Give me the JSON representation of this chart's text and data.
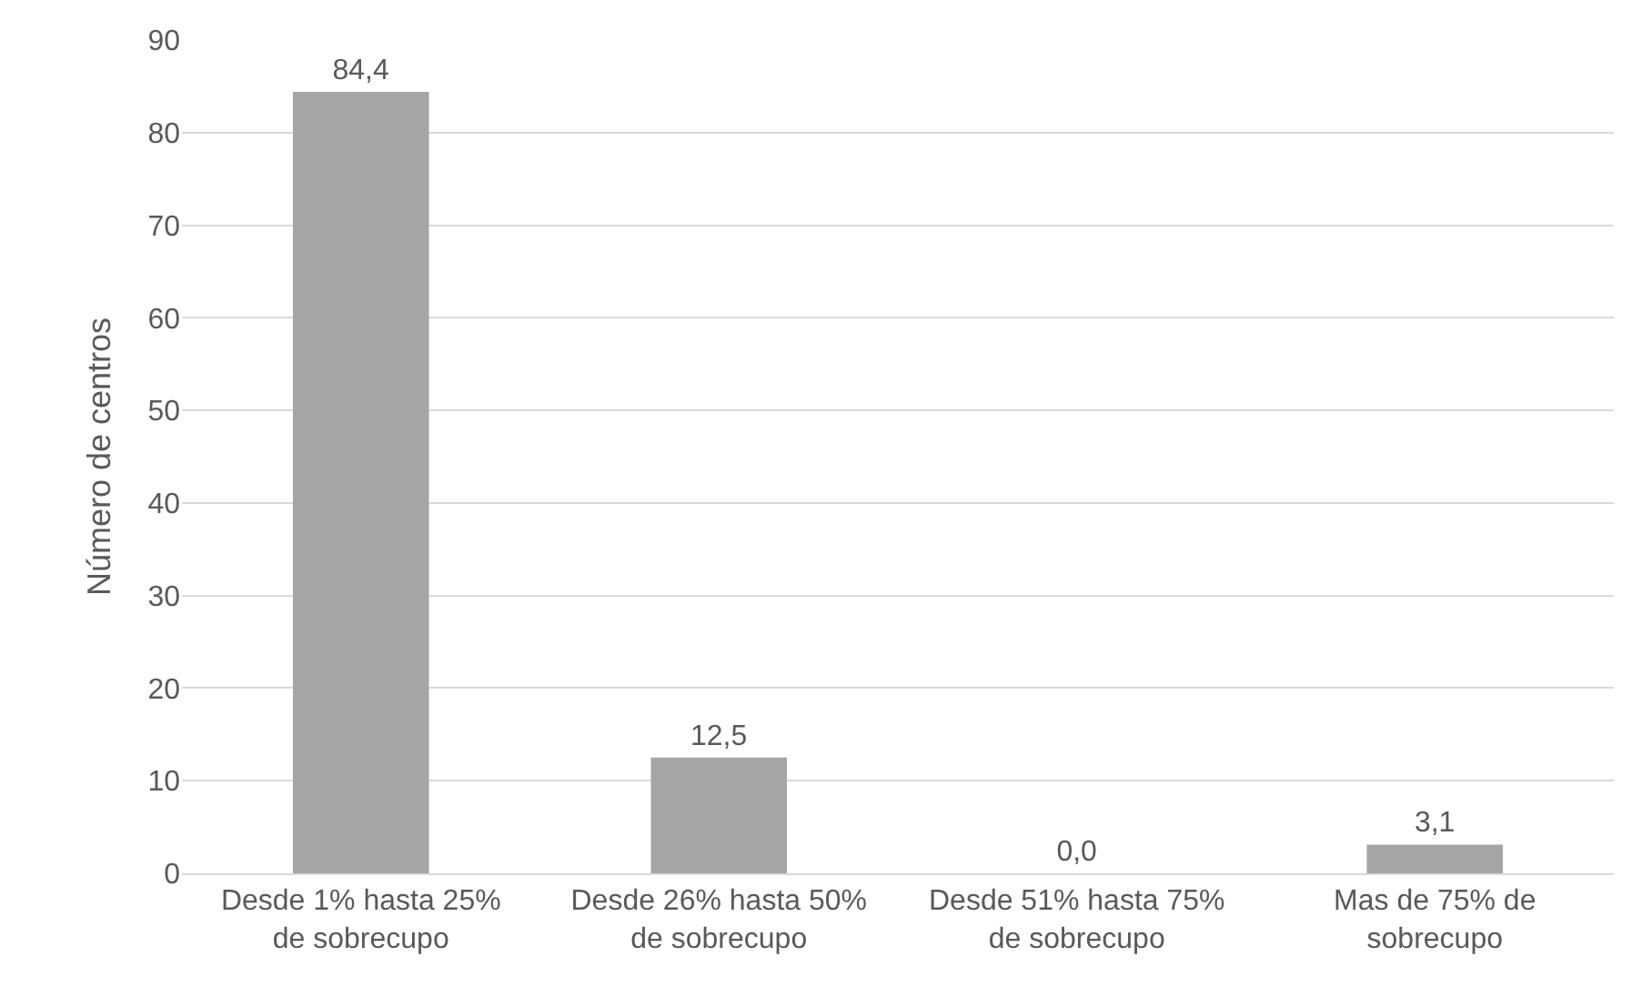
{
  "chart_data": {
    "type": "bar",
    "ylabel": "Número de centros",
    "categories": [
      "Desde 1% hasta 25% de sobrecupo",
      "Desde 26% hasta 50% de sobrecupo",
      "Desde 51% hasta 75% de sobrecupo",
      "Mas de 75% de sobrecupo"
    ],
    "values": [
      84.4,
      12.5,
      0.0,
      3.1
    ],
    "value_labels": [
      "84,4",
      "12,5",
      "0,0",
      "3,1"
    ],
    "color": "#a5a5a5",
    "ylim": [
      0,
      90
    ],
    "yticks": [
      0,
      10,
      20,
      30,
      40,
      50,
      60,
      70,
      80,
      90
    ],
    "grid": "y",
    "legend": false
  }
}
